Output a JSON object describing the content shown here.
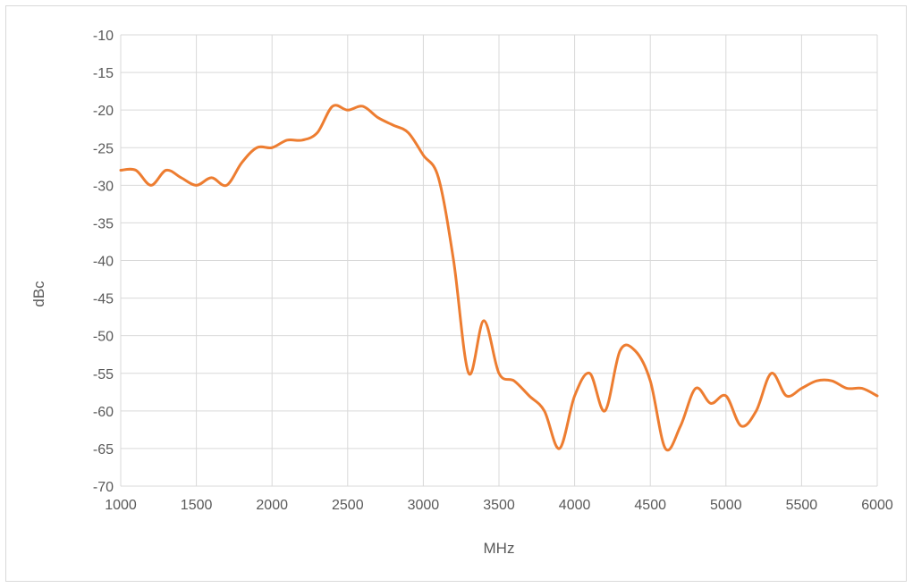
{
  "chart_data": {
    "type": "line",
    "title": "",
    "xlabel": "MHz",
    "ylabel": "dBc",
    "xlim": [
      1000,
      6000
    ],
    "ylim": [
      -70,
      -10
    ],
    "x_ticks": [
      1000,
      1500,
      2000,
      2500,
      3000,
      3500,
      4000,
      4500,
      5000,
      5500,
      6000
    ],
    "y_ticks": [
      -10,
      -15,
      -20,
      -25,
      -30,
      -35,
      -40,
      -45,
      -50,
      -55,
      -60,
      -65,
      -70
    ],
    "grid": true,
    "legend": "none",
    "series": [
      {
        "color": "#ED7D31",
        "x": [
          1000,
          1100,
          1200,
          1300,
          1400,
          1500,
          1600,
          1700,
          1800,
          1900,
          2000,
          2100,
          2200,
          2300,
          2400,
          2500,
          2600,
          2700,
          2800,
          2900,
          3000,
          3100,
          3200,
          3300,
          3400,
          3500,
          3600,
          3700,
          3800,
          3900,
          4000,
          4100,
          4200,
          4300,
          4400,
          4500,
          4600,
          4700,
          4800,
          4900,
          5000,
          5100,
          5200,
          5300,
          5400,
          5500,
          5600,
          5700,
          5800,
          5900,
          6000
        ],
        "y": [
          -28,
          -28,
          -30,
          -28,
          -29,
          -30,
          -29,
          -30,
          -27,
          -25,
          -25,
          -24,
          -24,
          -23,
          -19.5,
          -20,
          -19.5,
          -21,
          -22,
          -23,
          -26,
          -29,
          -40,
          -55,
          -48,
          -55,
          -56,
          -58,
          -60,
          -65,
          -58,
          -55,
          -60,
          -52,
          -52,
          -56,
          -65,
          -62,
          -57,
          -59,
          -58,
          -62,
          -60,
          -55,
          -58,
          -57,
          -56,
          -56,
          -57,
          -57,
          -58
        ]
      }
    ]
  }
}
